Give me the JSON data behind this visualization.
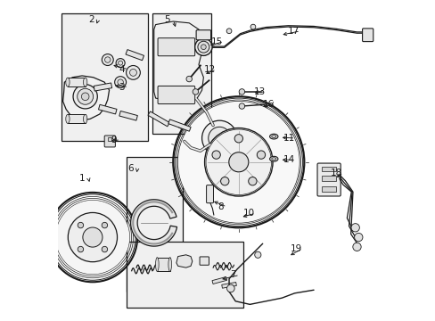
{
  "bg_color": "#ffffff",
  "line_color": "#1a1a1a",
  "box_fill": "#f0f0f0",
  "figsize": [
    4.89,
    3.6
  ],
  "dpi": 100,
  "boxes": {
    "caliper": [
      0.01,
      0.04,
      0.27,
      0.4
    ],
    "pads": [
      0.295,
      0.04,
      0.185,
      0.375
    ],
    "shoe": [
      0.215,
      0.49,
      0.175,
      0.42
    ],
    "spring": [
      0.215,
      0.755,
      0.365,
      0.205
    ]
  },
  "labels": {
    "1": [
      0.085,
      0.555,
      0.105,
      0.575
    ],
    "2": [
      0.115,
      0.055,
      0.125,
      0.075
    ],
    "3": [
      0.195,
      0.265,
      0.165,
      0.26
    ],
    "4": [
      0.195,
      0.21,
      0.163,
      0.195
    ],
    "5": [
      0.345,
      0.055,
      0.365,
      0.085
    ],
    "6": [
      0.228,
      0.52,
      0.245,
      0.54
    ],
    "7": [
      0.545,
      0.86,
      0.505,
      0.875
    ],
    "8": [
      0.505,
      0.645,
      0.497,
      0.66
    ],
    "9": [
      0.17,
      0.43,
      0.155,
      0.435
    ],
    "10": [
      0.595,
      0.665,
      0.568,
      0.68
    ],
    "11": [
      0.72,
      0.43,
      0.697,
      0.43
    ],
    "12": [
      0.47,
      0.215,
      0.46,
      0.235
    ],
    "13": [
      0.625,
      0.285,
      0.605,
      0.29
    ],
    "14": [
      0.72,
      0.5,
      0.697,
      0.505
    ],
    "15": [
      0.5,
      0.125,
      0.508,
      0.145
    ],
    "16": [
      0.655,
      0.325,
      0.633,
      0.335
    ],
    "17": [
      0.735,
      0.09,
      0.695,
      0.105
    ],
    "18": [
      0.87,
      0.535,
      0.86,
      0.555
    ],
    "19": [
      0.74,
      0.77,
      0.715,
      0.795
    ]
  }
}
